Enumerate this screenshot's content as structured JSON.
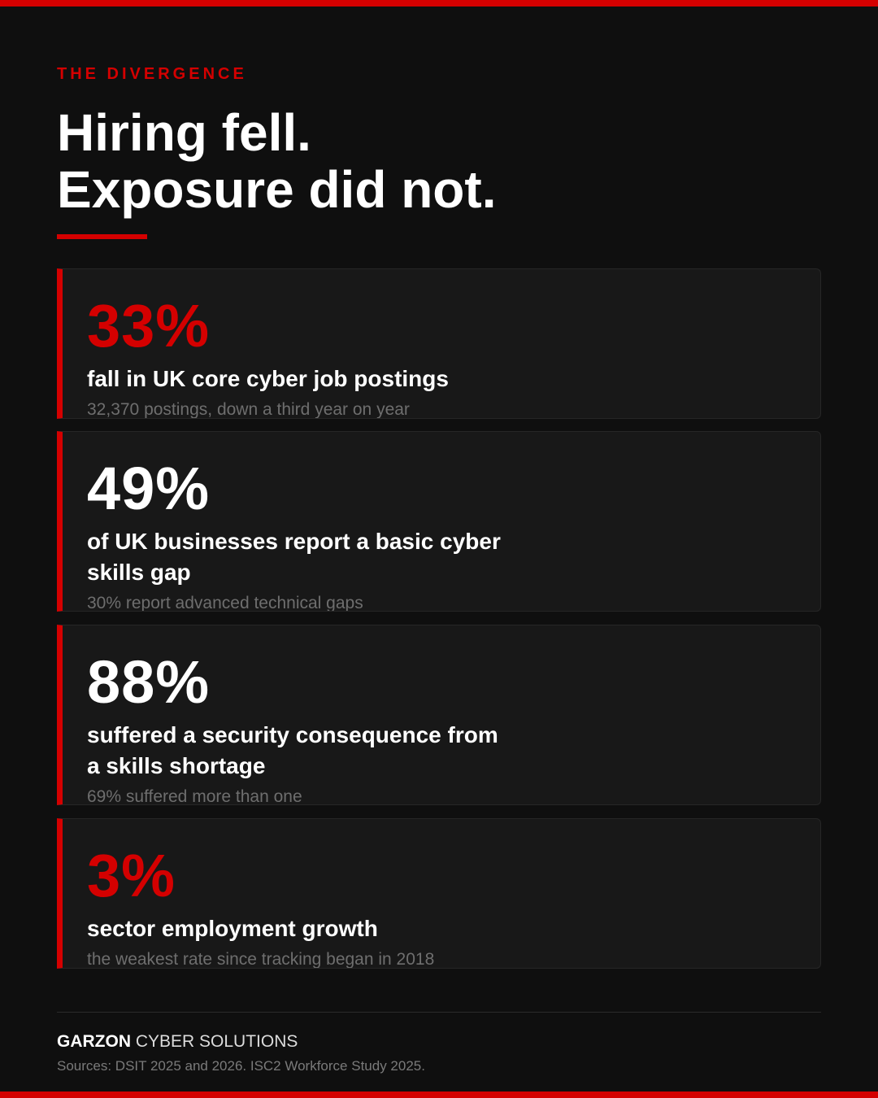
{
  "eyebrow": "THE DIVERGENCE",
  "headline": {
    "line1": "Hiring fell.",
    "line2": "Exposure did not."
  },
  "stats": [
    {
      "value": "33%",
      "description": "fall in UK core cyber job postings",
      "note": "32,370 postings, down a third year on year",
      "value_color": "#d40000"
    },
    {
      "value": "49%",
      "description": "of UK businesses report a basic cyber skills gap",
      "note": "30% report advanced technical gaps",
      "value_color": "#ffffff"
    },
    {
      "value": "88%",
      "description": "suffered a security consequence from a skills shortage",
      "note": "69% suffered more than one",
      "value_color": "#ffffff"
    },
    {
      "value": "3%",
      "description": "sector employment growth",
      "note": "the weakest rate since tracking began in 2018",
      "value_color": "#d40000"
    }
  ],
  "footer": {
    "brand_strong": "GARZON",
    "brand_rest": " CYBER SOLUTIONS",
    "sources": "Sources: DSIT 2025 and 2026. ISC2 Workforce Study 2025."
  },
  "colors": {
    "accent": "#d40000",
    "background": "#0f0f0f",
    "card": "#181818",
    "muted_text": "#6e6e6e"
  }
}
